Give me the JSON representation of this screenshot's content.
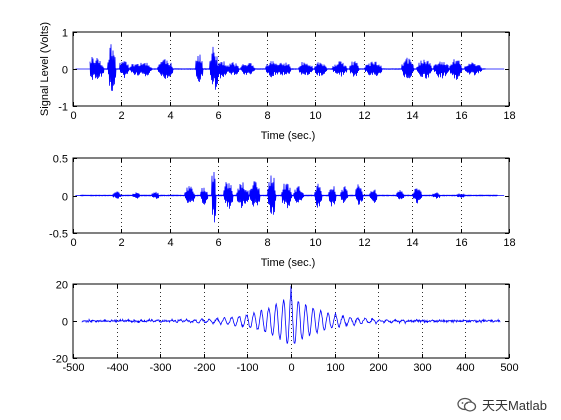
{
  "chart_data": [
    {
      "type": "line",
      "xlabel": "Time (sec.)",
      "ylabel": "Signal Level (Volts)",
      "xlim": [
        0,
        18
      ],
      "ylim": [
        -1,
        1
      ],
      "xticks": [
        0,
        2,
        4,
        6,
        8,
        10,
        12,
        14,
        16,
        18
      ],
      "xtick_labels": [
        "0",
        "2",
        "4",
        "6",
        "8",
        "10",
        "12",
        "14",
        "16",
        "18"
      ],
      "yticks": [
        -1,
        0,
        1
      ],
      "ytick_labels": [
        "-1",
        "0",
        "1"
      ],
      "grid": "vertical-dotted",
      "line_color": "#0000ff",
      "series": [
        {
          "seed": 11,
          "x_start": 0.7,
          "x_end": 17.0,
          "base_amp": 0.12,
          "noise_amp": 0.01,
          "bursts": [
            [
              0.75,
              0.6,
              0.35
            ],
            [
              1.1,
              0.35,
              0.25
            ],
            [
              1.6,
              0.35,
              0.7
            ],
            [
              2.1,
              0.4,
              0.28
            ],
            [
              2.6,
              0.5,
              0.18
            ],
            [
              3.0,
              0.45,
              0.2
            ],
            [
              3.8,
              0.6,
              0.3
            ],
            [
              5.2,
              0.3,
              0.42
            ],
            [
              5.8,
              0.3,
              0.6
            ],
            [
              6.1,
              0.5,
              0.25
            ],
            [
              6.6,
              0.5,
              0.18
            ],
            [
              7.2,
              0.6,
              0.18
            ],
            [
              8.2,
              0.5,
              0.22
            ],
            [
              8.7,
              0.6,
              0.2
            ],
            [
              9.6,
              0.6,
              0.22
            ],
            [
              10.2,
              0.5,
              0.2
            ],
            [
              11.0,
              0.6,
              0.2
            ],
            [
              11.6,
              0.4,
              0.22
            ],
            [
              12.4,
              0.7,
              0.2
            ],
            [
              13.8,
              0.5,
              0.3
            ],
            [
              14.5,
              0.6,
              0.28
            ],
            [
              15.2,
              0.6,
              0.25
            ],
            [
              15.8,
              0.5,
              0.3
            ],
            [
              16.5,
              0.7,
              0.18
            ]
          ]
        }
      ]
    },
    {
      "type": "line",
      "xlabel": "Time (sec.)",
      "ylabel": "",
      "xlim": [
        0,
        18
      ],
      "ylim": [
        -0.5,
        0.5
      ],
      "xticks": [
        0,
        2,
        4,
        6,
        8,
        10,
        12,
        14,
        16,
        18
      ],
      "xtick_labels": [
        "0",
        "2",
        "4",
        "6",
        "8",
        "10",
        "12",
        "14",
        "16",
        "18"
      ],
      "yticks": [
        -0.5,
        0,
        0.5
      ],
      "ytick_labels": [
        "-0.5",
        "0",
        "0.5"
      ],
      "grid": "vertical-dotted",
      "line_color": "#0000ff",
      "series": [
        {
          "seed": 23,
          "x_start": 0.3,
          "x_end": 17.5,
          "base_amp": 0.02,
          "noise_amp": 0.006,
          "bursts": [
            [
              1.8,
              0.3,
              0.05
            ],
            [
              2.6,
              0.3,
              0.04
            ],
            [
              3.4,
              0.3,
              0.05
            ],
            [
              4.8,
              0.4,
              0.15
            ],
            [
              5.4,
              0.3,
              0.12
            ],
            [
              5.8,
              0.2,
              0.4
            ],
            [
              6.4,
              0.4,
              0.2
            ],
            [
              7.0,
              0.5,
              0.18
            ],
            [
              7.5,
              0.4,
              0.2
            ],
            [
              8.2,
              0.3,
              0.35
            ],
            [
              8.8,
              0.4,
              0.2
            ],
            [
              9.3,
              0.4,
              0.12
            ],
            [
              10.1,
              0.3,
              0.16
            ],
            [
              10.7,
              0.3,
              0.18
            ],
            [
              11.2,
              0.3,
              0.12
            ],
            [
              11.8,
              0.3,
              0.15
            ],
            [
              12.4,
              0.3,
              0.1
            ],
            [
              13.5,
              0.3,
              0.08
            ],
            [
              14.2,
              0.4,
              0.1
            ],
            [
              15.0,
              0.3,
              0.04
            ],
            [
              16.0,
              0.3,
              0.03
            ]
          ]
        }
      ]
    },
    {
      "type": "line",
      "xlabel": "",
      "ylabel": "",
      "xlim": [
        -500,
        500
      ],
      "ylim": [
        -20,
        20
      ],
      "xticks": [
        -500,
        -400,
        -300,
        -200,
        -100,
        0,
        100,
        200,
        300,
        400,
        500
      ],
      "xtick_labels": [
        "-500",
        "-400",
        "-300",
        "-200",
        "-100",
        "0",
        "100",
        "200",
        "300",
        "400",
        "500"
      ],
      "yticks": [
        -20,
        0,
        20
      ],
      "ytick_labels": [
        "-20",
        "0",
        "20"
      ],
      "grid": "vertical-dotted",
      "line_color": "#0000ff",
      "series": [
        {
          "seed": 37,
          "x_start": -480,
          "x_end": 480,
          "peak": 19,
          "trough": -12,
          "period": 17,
          "decay": 70,
          "noise_amp": 0.7
        }
      ]
    }
  ],
  "watermark": {
    "text": "天天Matlab",
    "icon": "wechat-icon"
  }
}
